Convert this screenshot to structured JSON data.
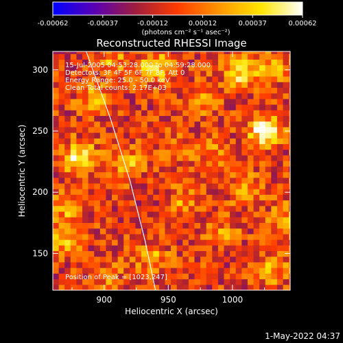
{
  "chart_data": {
    "type": "heatmap",
    "title": "Reconstructed RHESSI Image",
    "xlabel": "Heliocentric X (arcsec)",
    "ylabel": "Heliocentric Y (arcsec)",
    "xlim": [
      860,
      1045
    ],
    "ylim": [
      120,
      315
    ],
    "xticks": [
      900,
      950,
      1000
    ],
    "yticks": [
      150,
      200,
      250,
      300
    ],
    "colorbar": {
      "label": "(photons cm⁻² s⁻¹ asec⁻²)",
      "range": [
        -0.00062,
        0.00062
      ],
      "ticks": [
        "-0.00062",
        "-0.00037",
        "-0.00012",
        "0.00012",
        "0.00037",
        "0.00062"
      ],
      "colors": [
        "#0000ff",
        "#5a00b4",
        "#a01e3c",
        "#ff3c00",
        "#ff9600",
        "#ffe600",
        "#ffffff"
      ]
    },
    "annotations": [
      "15-Jul-2005 04:53:28.000 to 04:59:28.000",
      "Detectors: 3F 4F 5F 6F 7F 8F, Att 0",
      "Energy Range: 25.0 - 50.0 keV",
      "Clean     Total counts: 2.17E+03"
    ],
    "peak_label": "Position of Peak = [1023,247]",
    "peak": [
      1023,
      247
    ],
    "hotspots": [
      {
        "x": 1023,
        "y": 247,
        "value": 0.00062
      },
      {
        "x": 878,
        "y": 226,
        "value": 0.00055
      },
      {
        "x": 1005,
        "y": 295,
        "value": 0.00045
      },
      {
        "x": 938,
        "y": 300,
        "value": 0.0004
      },
      {
        "x": 865,
        "y": 160,
        "value": 0.00038
      },
      {
        "x": 915,
        "y": 222,
        "value": 0.00035
      },
      {
        "x": 975,
        "y": 275,
        "value": 0.0003
      },
      {
        "x": 1040,
        "y": 175,
        "value": 0.00032
      },
      {
        "x": 1010,
        "y": 200,
        "value": 0.0003
      },
      {
        "x": 890,
        "y": 275,
        "value": 0.0003
      },
      {
        "x": 960,
        "y": 190,
        "value": 0.00025
      },
      {
        "x": 935,
        "y": 145,
        "value": 0.00028
      },
      {
        "x": 990,
        "y": 165,
        "value": 0.00022
      },
      {
        "x": 1030,
        "y": 135,
        "value": 0.0003
      },
      {
        "x": 905,
        "y": 305,
        "value": 0.00028
      },
      {
        "x": 985,
        "y": 230,
        "value": 0.0002
      },
      {
        "x": 870,
        "y": 185,
        "value": 0.0003
      },
      {
        "x": 955,
        "y": 235,
        "value": 0.00018
      },
      {
        "x": 1030,
        "y": 300,
        "value": 0.0003
      },
      {
        "x": 900,
        "y": 130,
        "value": 0.0002
      }
    ],
    "limb": [
      [
        885,
        318
      ],
      [
        905,
        260
      ],
      [
        920,
        210
      ],
      [
        932,
        160
      ],
      [
        940,
        120
      ]
    ]
  },
  "footer": {
    "timestamp": "1-May-2022 04:37"
  }
}
